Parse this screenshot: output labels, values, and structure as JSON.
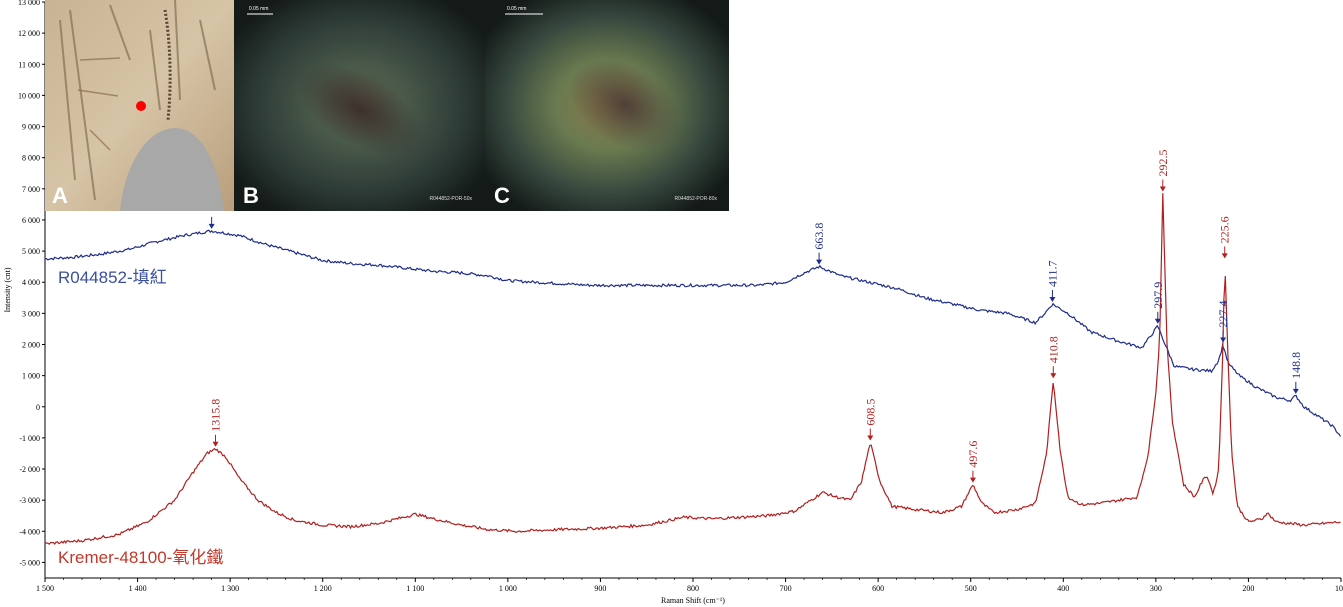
{
  "chart_data": {
    "type": "line",
    "xlabel": "Raman Shift (cm⁻¹)",
    "ylabel": "Intensity (cnt)",
    "xlim": [
      1500,
      100
    ],
    "ylim": [
      -5500,
      13000
    ],
    "x_reversed": true,
    "x_ticks": [
      1500,
      1400,
      1300,
      1200,
      1100,
      1000,
      900,
      800,
      700,
      600,
      500,
      400,
      300,
      200,
      100
    ],
    "x_tick_labels": [
      "1 500",
      "1 400",
      "1 300",
      "1 200",
      "1 100",
      "1 000",
      "900",
      "800",
      "700",
      "600",
      "500",
      "400",
      "300",
      "200",
      "100"
    ],
    "y_ticks": [
      13000,
      12000,
      11000,
      10000,
      9000,
      8000,
      7000,
      6000,
      5000,
      4000,
      3000,
      2000,
      1000,
      0,
      -1000,
      -2000,
      -3000,
      -4000,
      -5000
    ],
    "y_tick_labels": [
      "13 000",
      "12 000",
      "11 000",
      "10 000",
      "9 000",
      "8 000",
      "7 000",
      "6 000",
      "5 000",
      "4 000",
      "3 000",
      "2 000",
      "1 000",
      "0",
      "-1 000",
      "-2 000",
      "-3 000",
      "-4 000",
      "-5 000"
    ],
    "series": [
      {
        "name": "R044852-填紅",
        "color": "#1f2d8a",
        "label_color": "#3b4fa0",
        "points": [
          [
            1500,
            4750
          ],
          [
            1470,
            4800
          ],
          [
            1440,
            4900
          ],
          [
            1410,
            5050
          ],
          [
            1380,
            5300
          ],
          [
            1350,
            5500
          ],
          [
            1320,
            5650
          ],
          [
            1290,
            5500
          ],
          [
            1260,
            5200
          ],
          [
            1230,
            4950
          ],
          [
            1200,
            4700
          ],
          [
            1170,
            4600
          ],
          [
            1140,
            4550
          ],
          [
            1110,
            4450
          ],
          [
            1080,
            4350
          ],
          [
            1050,
            4300
          ],
          [
            1020,
            4200
          ],
          [
            1000,
            4050
          ],
          [
            970,
            4000
          ],
          [
            940,
            3950
          ],
          [
            910,
            3900
          ],
          [
            880,
            3900
          ],
          [
            850,
            3900
          ],
          [
            820,
            3900
          ],
          [
            790,
            3900
          ],
          [
            760,
            3900
          ],
          [
            730,
            3900
          ],
          [
            700,
            4000
          ],
          [
            680,
            4300
          ],
          [
            663.8,
            4500
          ],
          [
            640,
            4200
          ],
          [
            610,
            4000
          ],
          [
            580,
            3800
          ],
          [
            550,
            3500
          ],
          [
            520,
            3300
          ],
          [
            490,
            3100
          ],
          [
            460,
            3000
          ],
          [
            430,
            2700
          ],
          [
            420,
            3000
          ],
          [
            411.7,
            3300
          ],
          [
            395,
            3000
          ],
          [
            370,
            2400
          ],
          [
            340,
            2100
          ],
          [
            315,
            1900
          ],
          [
            305,
            2300
          ],
          [
            297.9,
            2600
          ],
          [
            290,
            2000
          ],
          [
            280,
            1300
          ],
          [
            260,
            1200
          ],
          [
            240,
            1150
          ],
          [
            232,
            1500
          ],
          [
            227.4,
            2000
          ],
          [
            222,
            1400
          ],
          [
            210,
            1000
          ],
          [
            190,
            600
          ],
          [
            170,
            300
          ],
          [
            155,
            200
          ],
          [
            148.8,
            350
          ],
          [
            140,
            0
          ],
          [
            125,
            -300
          ],
          [
            110,
            -600
          ],
          [
            100,
            -950
          ]
        ],
        "peaks": [
          {
            "x": 663.8,
            "label": "663.8"
          },
          {
            "x": 411.7,
            "label": "411.7"
          },
          {
            "x": 297.9,
            "label": "297.9"
          },
          {
            "x": 227.4,
            "label": "227.4"
          },
          {
            "x": 148.8,
            "label": "148.8"
          },
          {
            "x": 1320,
            "label": ""
          }
        ]
      },
      {
        "name": "Kremer-48100-氧化鐵",
        "color": "#b21f1f",
        "label_color": "#c0392b",
        "points": [
          [
            1500,
            -4400
          ],
          [
            1460,
            -4300
          ],
          [
            1420,
            -4100
          ],
          [
            1390,
            -3700
          ],
          [
            1360,
            -3000
          ],
          [
            1340,
            -2100
          ],
          [
            1325,
            -1500
          ],
          [
            1315.8,
            -1350
          ],
          [
            1305,
            -1600
          ],
          [
            1290,
            -2300
          ],
          [
            1270,
            -3000
          ],
          [
            1250,
            -3400
          ],
          [
            1230,
            -3650
          ],
          [
            1200,
            -3800
          ],
          [
            1170,
            -3850
          ],
          [
            1140,
            -3750
          ],
          [
            1100,
            -3450
          ],
          [
            1080,
            -3600
          ],
          [
            1050,
            -3800
          ],
          [
            1020,
            -3950
          ],
          [
            990,
            -4000
          ],
          [
            950,
            -3950
          ],
          [
            900,
            -3900
          ],
          [
            850,
            -3800
          ],
          [
            810,
            -3550
          ],
          [
            780,
            -3600
          ],
          [
            750,
            -3550
          ],
          [
            720,
            -3500
          ],
          [
            690,
            -3350
          ],
          [
            660,
            -2750
          ],
          [
            645,
            -2900
          ],
          [
            630,
            -3000
          ],
          [
            618,
            -2400
          ],
          [
            608.5,
            -1150
          ],
          [
            598,
            -2400
          ],
          [
            585,
            -3200
          ],
          [
            560,
            -3300
          ],
          [
            530,
            -3400
          ],
          [
            510,
            -3200
          ],
          [
            497.6,
            -2500
          ],
          [
            488,
            -3100
          ],
          [
            475,
            -3400
          ],
          [
            450,
            -3300
          ],
          [
            430,
            -3100
          ],
          [
            418,
            -1500
          ],
          [
            410.8,
            850
          ],
          [
            403,
            -1500
          ],
          [
            395,
            -2900
          ],
          [
            380,
            -3150
          ],
          [
            360,
            -3100
          ],
          [
            320,
            -2900
          ],
          [
            308,
            -1500
          ],
          [
            300,
            500
          ],
          [
            296,
            2000
          ],
          [
            292.5,
            6850
          ],
          [
            288,
            2000
          ],
          [
            282,
            -500
          ],
          [
            270,
            -2500
          ],
          [
            258,
            -2900
          ],
          [
            250,
            -2400
          ],
          [
            245,
            -2200
          ],
          [
            238,
            -2800
          ],
          [
            232,
            -2000
          ],
          [
            228,
            1500
          ],
          [
            225.6,
            4700
          ],
          [
            222,
            1500
          ],
          [
            218,
            -1500
          ],
          [
            212,
            -3200
          ],
          [
            200,
            -3700
          ],
          [
            185,
            -3600
          ],
          [
            180,
            -3400
          ],
          [
            170,
            -3700
          ],
          [
            140,
            -3800
          ],
          [
            100,
            -3700
          ]
        ],
        "peaks": [
          {
            "x": 1315.8,
            "label": "1315.8"
          },
          {
            "x": 608.5,
            "label": "608.5"
          },
          {
            "x": 497.6,
            "label": "497.6"
          },
          {
            "x": 410.8,
            "label": "410.8"
          },
          {
            "x": 292.5,
            "label": "292.5"
          },
          {
            "x": 225.6,
            "label": "225.6"
          }
        ]
      }
    ],
    "grid": false,
    "legend": "inline labels at left"
  },
  "inset_photos": [
    {
      "letter": "A",
      "caption": "",
      "scale": ""
    },
    {
      "letter": "B",
      "caption": "R044852-POR-50x",
      "scale": "0.05 mm"
    },
    {
      "letter": "C",
      "caption": "R044852-POR-80x",
      "scale": "0.05 mm"
    }
  ],
  "colors": {
    "blue_series": "#1f2d8a",
    "red_series": "#b21f1f",
    "marker_dot": "#ff0000"
  }
}
